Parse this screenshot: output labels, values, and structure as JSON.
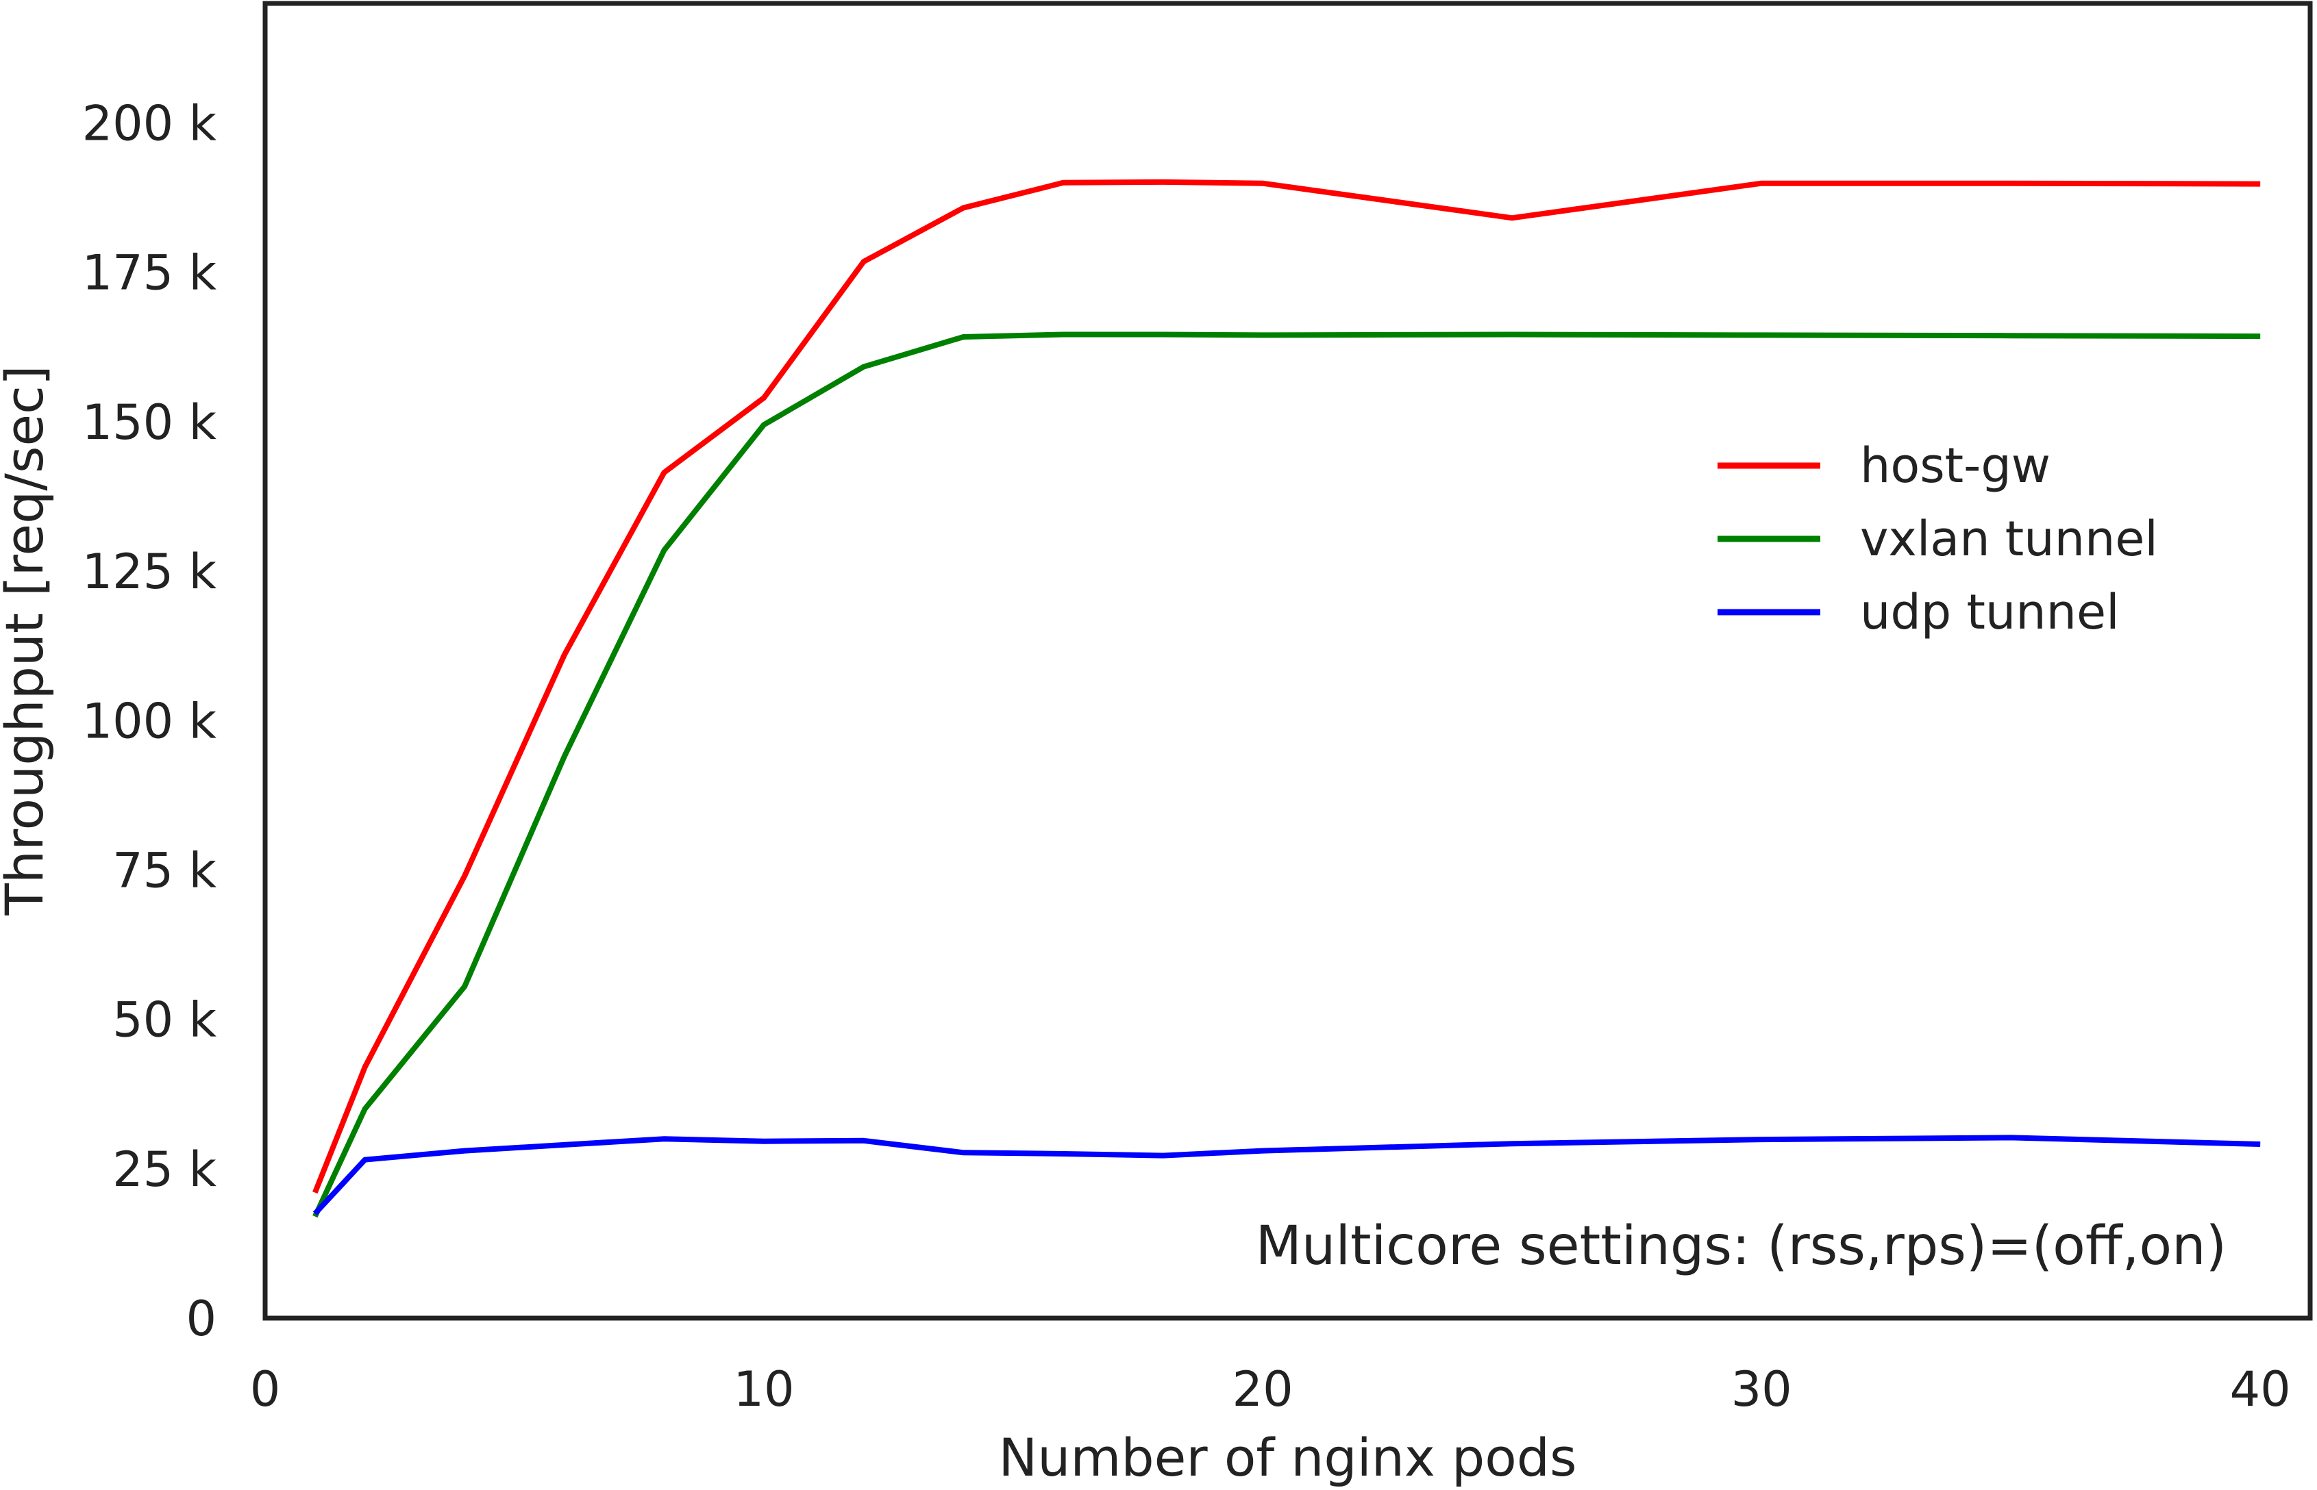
{
  "chart_data": {
    "type": "line",
    "xlabel": "Number of nginx pods",
    "ylabel": "Throughput [req/sec]",
    "xlim": [
      0,
      41
    ],
    "ylim": [
      0,
      220000
    ],
    "xticks": [
      0,
      10,
      20,
      30,
      40
    ],
    "xtick_labels": [
      "0",
      "10",
      "20",
      "30",
      "40"
    ],
    "yticks": [
      0,
      25000,
      50000,
      75000,
      100000,
      125000,
      150000,
      175000,
      200000
    ],
    "ytick_labels": [
      "0",
      "25 k",
      "50 k",
      "75 k",
      "100 k",
      "125 k",
      "150 k",
      "175 k",
      "200 k"
    ],
    "grid": false,
    "legend_position": "center-right",
    "annotation": "Multicore settings: (rss,rps)=(off,on)",
    "series": [
      {
        "name": "host-gw",
        "color": "#ff0000",
        "x": [
          1,
          2,
          4,
          6,
          8,
          10,
          12,
          14,
          16,
          18,
          20,
          25,
          30,
          35,
          40
        ],
        "y": [
          21000,
          42000,
          74000,
          111000,
          141500,
          154000,
          176800,
          185800,
          190000,
          190100,
          189900,
          184100,
          189900,
          189900,
          189800
        ]
      },
      {
        "name": "vxlan tunnel",
        "color": "#008000",
        "x": [
          1,
          2,
          4,
          6,
          8,
          10,
          12,
          14,
          16,
          18,
          20,
          25,
          30,
          35,
          40
        ],
        "y": [
          17000,
          35000,
          55500,
          94000,
          128500,
          149500,
          159200,
          164200,
          164600,
          164600,
          164500,
          164600,
          164500,
          164400,
          164300
        ]
      },
      {
        "name": "udp tunnel",
        "color": "#0000ff",
        "x": [
          1,
          2,
          4,
          6,
          8,
          10,
          12,
          14,
          16,
          18,
          20,
          25,
          30,
          35,
          40
        ],
        "y": [
          17500,
          26500,
          28000,
          29000,
          30000,
          29600,
          29700,
          27700,
          27500,
          27200,
          28000,
          29200,
          29900,
          30200,
          29100
        ]
      }
    ]
  }
}
